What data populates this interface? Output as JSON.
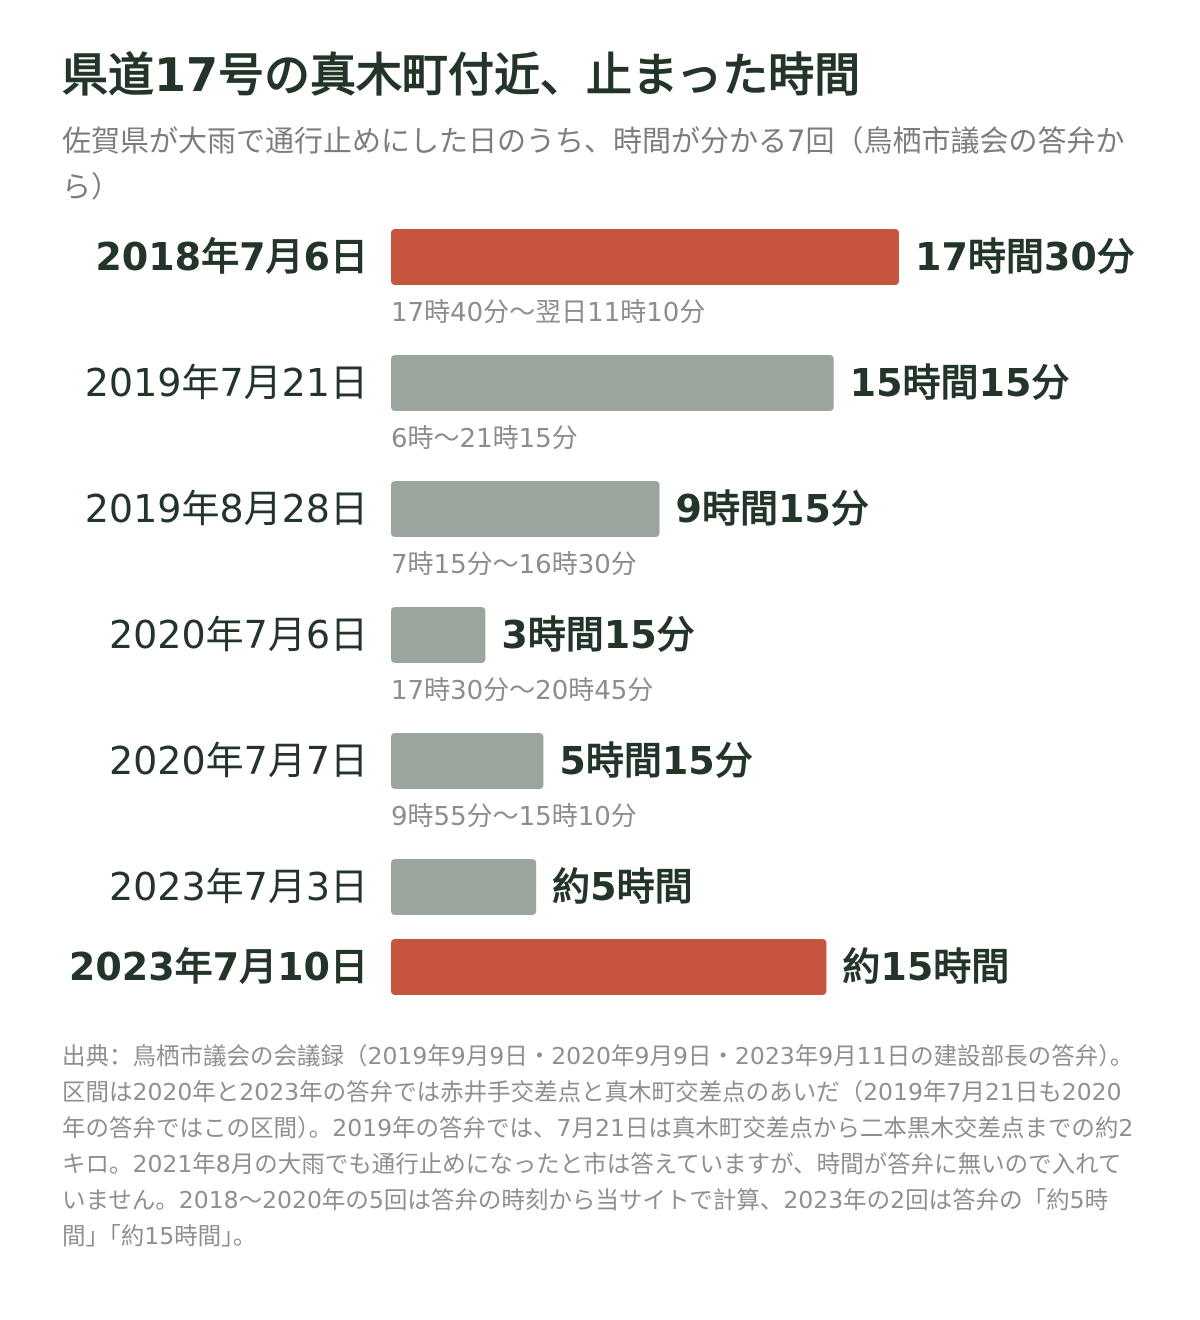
{
  "title": "県道17号の真木町付近、止まった時間",
  "subtitle": "佐賀県が大雨で通行止めにした日のうち、時間が分かる7回（鳥栖市議会の答弁から）",
  "source": "出典：鳥栖市議会の会議録（2019年9月9日・2020年9月9日・2023年9月11日の建設部長の答弁）。区間は2020年と2023年の答弁では赤井手交差点と真木町交差点のあいだ（2019年7月21日も2020年の答弁ではこの区間）。2019年の答弁では、7月21日は真木町交差点から二本黒木交差点までの約2キロ。2021年8月の大雨でも通行止めになったと市は答えていますが、時間が答弁に無いので入れていません。2018〜2020年の5回は答弁の時刻から当サイトで計算、2023年の2回は答弁の「約5時間」「約15時間」。",
  "colors": {
    "highlight": "#c5553e",
    "normal": "#9aa59d",
    "text": "#233429",
    "sub": "#7a7f7b"
  },
  "chart_data": {
    "type": "bar",
    "orientation": "horizontal",
    "unit": "hours",
    "bars": [
      {
        "date": "2018年7月6日",
        "hours": 17.5,
        "value_label": "17時間30分",
        "range": "17時40分〜翌日11時10分",
        "highlight": true
      },
      {
        "date": "2019年7月21日",
        "hours": 15.25,
        "value_label": "15時間15分",
        "range": "6時〜21時15分",
        "highlight": false
      },
      {
        "date": "2019年8月28日",
        "hours": 9.25,
        "value_label": "9時間15分",
        "range": "7時15分〜16時30分",
        "highlight": false
      },
      {
        "date": "2020年7月6日",
        "hours": 3.25,
        "value_label": "3時間15分",
        "range": "17時30分〜20時45分",
        "highlight": false
      },
      {
        "date": "2020年7月7日",
        "hours": 5.25,
        "value_label": "5時間15分",
        "range": "9時55分〜15時10分",
        "highlight": false
      },
      {
        "date": "2023年7月3日",
        "hours": 5,
        "value_label": "約5時間",
        "range": "",
        "highlight": false
      },
      {
        "date": "2023年7月10日",
        "hours": 15,
        "value_label": "約15時間",
        "range": "",
        "highlight": true
      }
    ]
  }
}
